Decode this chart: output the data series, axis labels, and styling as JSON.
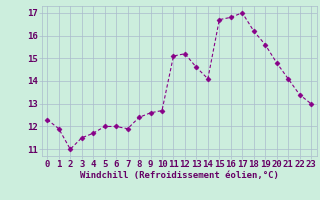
{
  "x": [
    0,
    1,
    2,
    3,
    4,
    5,
    6,
    7,
    8,
    9,
    10,
    11,
    12,
    13,
    14,
    15,
    16,
    17,
    18,
    19,
    20,
    21,
    22,
    23
  ],
  "y": [
    12.3,
    11.9,
    11.0,
    11.5,
    11.7,
    12.0,
    12.0,
    11.9,
    12.4,
    12.6,
    12.7,
    15.1,
    15.2,
    14.6,
    14.1,
    16.7,
    16.8,
    17.0,
    16.2,
    15.6,
    14.8,
    14.1,
    13.4,
    13.0
  ],
  "line_color": "#880088",
  "marker": "D",
  "marker_size": 2.5,
  "bg_color": "#cceedd",
  "grid_color": "#aabbcc",
  "xlabel": "Windchill (Refroidissement éolien,°C)",
  "ylabel_ticks": [
    11,
    12,
    13,
    14,
    15,
    16,
    17
  ],
  "xlim": [
    -0.5,
    23.5
  ],
  "ylim": [
    10.7,
    17.3
  ],
  "tick_color": "#660066",
  "xlabel_fontsize": 6.5,
  "tick_fontsize": 6.5
}
